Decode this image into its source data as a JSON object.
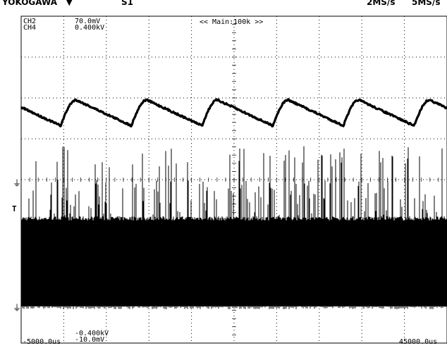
{
  "header": {
    "brand": "YOKOGAWA",
    "trigger_mark": "▼",
    "center_text": "S1",
    "right_text_1": "2MS/s",
    "right_text_2": "5MS/s"
  },
  "readouts": {
    "ch2_label": "CH2",
    "ch4_label": "CH4",
    "ch2_scale": "70.0mV",
    "ch4_scale": "0.400kV",
    "zoom_label": "<< Main:100k >>",
    "time_start": "-5000.0us",
    "time_end": "45000.0us",
    "bottom_offset_1": "-0.400kV",
    "bottom_offset_2": "-10.0mV"
  },
  "markers": {
    "ground_mark_upper": "⏚",
    "ground_mark_lower": "⏚",
    "trigger_level_mark": "T"
  },
  "chart_data": {
    "type": "line",
    "title": "",
    "xlabel": "",
    "ylabel": "",
    "x_unit": "us",
    "xlim": [
      -5000,
      45000
    ],
    "x_divisions": 10,
    "y_divisions": 8,
    "grid": true,
    "series": [
      {
        "name": "CH2",
        "volts_per_div_mV": 70.0,
        "shape": "sawtooth ripple",
        "approx_period_us": 8300,
        "note_values": "envelope: peaks near div 1.9 above center, troughs near div 1.3 above center"
      },
      {
        "name": "CH4",
        "volts_per_div_kV": 0.4,
        "shape": "dense switching pulses with sparse tall spikes",
        "note_values": "band between ~div -1.0 and div -3.0, spikes up to ~div 0.7"
      }
    ]
  }
}
